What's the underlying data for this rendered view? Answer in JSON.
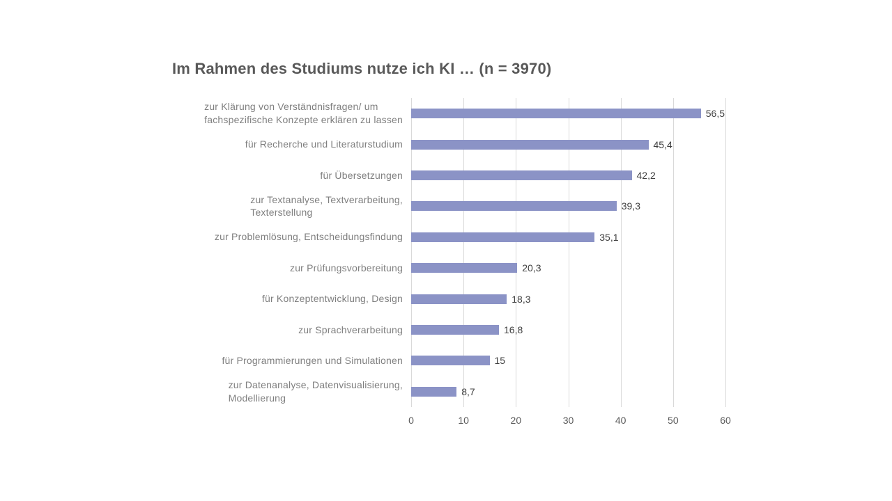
{
  "title": "Im Rahmen des Studiums nutze ich KI … (n = 3970)",
  "colors": {
    "background": "#FFFFFF",
    "bar": "#8B93C6",
    "grid": "#D9D9D9",
    "title": "#595959",
    "category_label": "#7F7F7F",
    "value_label": "#404040",
    "axis_tick": "#595959"
  },
  "chart_data": {
    "type": "bar",
    "orientation": "horizontal",
    "title": "Im Rahmen des Studiums nutze ich KI … (n = 3970)",
    "n": 3970,
    "categories": [
      "zur Klärung von Verständnisfragen/ um\nfachspezifische Konzepte erklären zu lassen",
      "für Recherche und Literaturstudium",
      "für Übersetzungen",
      "zur Textanalyse, Textverarbeitung,\nTexterstellung",
      "zur Problemlösung, Entscheidungsfindung",
      "zur Prüfungsvorbereitung",
      "für Konzeptentwicklung, Design",
      "zur Sprachverarbeitung",
      "für Programmierungen und Simulationen",
      "zur Datenanalyse, Datenvisualisierung,\nModellierung"
    ],
    "values": [
      56.5,
      45.4,
      42.2,
      39.3,
      35.1,
      20.3,
      18.3,
      16.8,
      15,
      8.7
    ],
    "value_labels": [
      "56,5",
      "45,4",
      "42,2",
      "39,3",
      "35,1",
      "20,3",
      "18,3",
      "16,8",
      "15",
      "8,7"
    ],
    "xlabel": "",
    "ylabel": "",
    "xlim": [
      0,
      60
    ],
    "x_ticks": [
      0,
      10,
      20,
      30,
      40,
      50,
      60
    ],
    "grid": true,
    "legend": false
  }
}
